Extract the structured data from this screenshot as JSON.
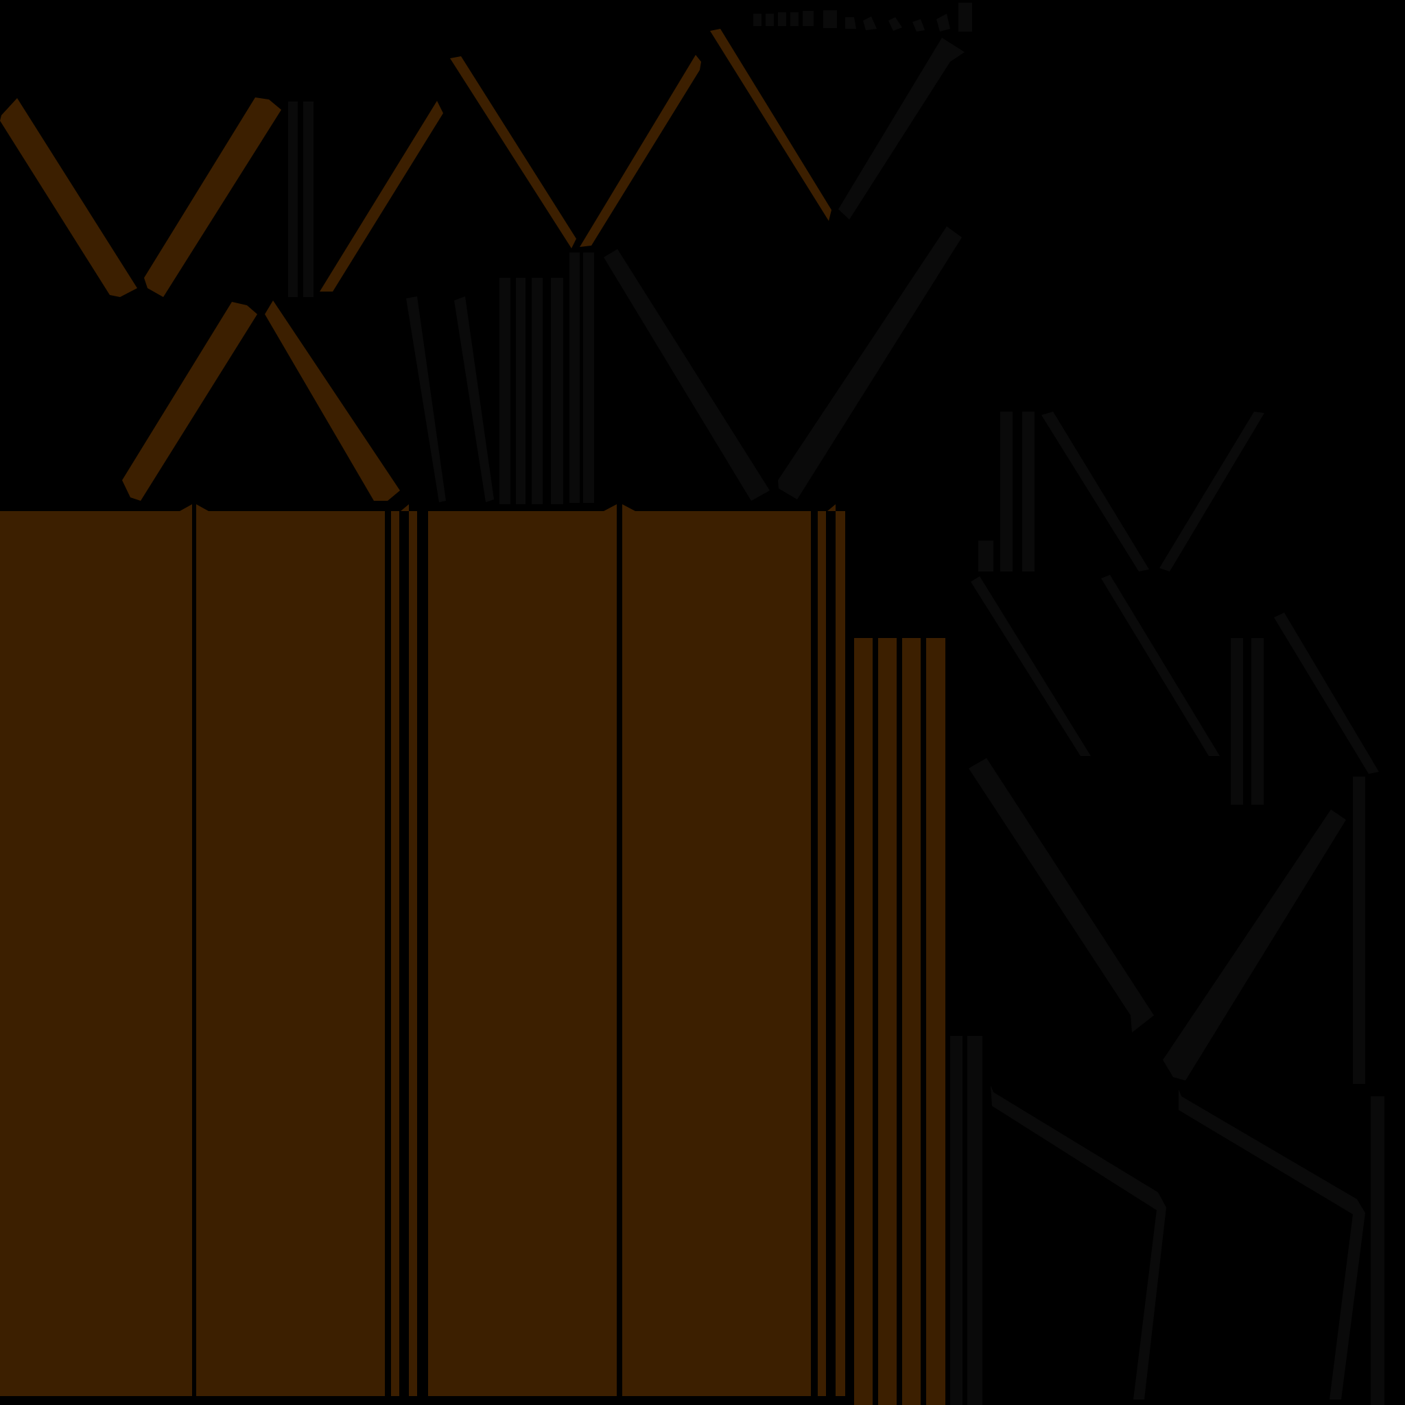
{
  "colors": {
    "background": "#000000",
    "wood": "#3c1f00",
    "dark_strip": "#0a0a0a"
  }
}
